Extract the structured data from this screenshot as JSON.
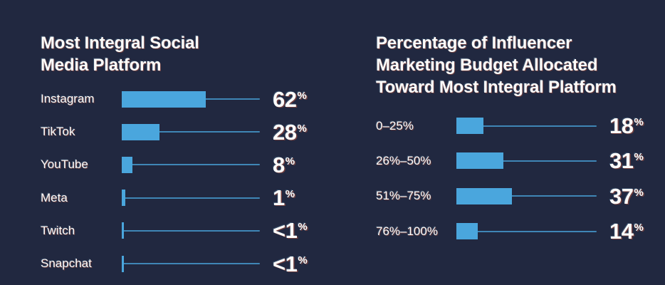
{
  "page": {
    "background": "#212840",
    "text_color": "#FDFCFA",
    "accent": "#4AA6DD"
  },
  "chart_data": [
    {
      "type": "bar",
      "orientation": "horizontal",
      "title": "Most Integral Social Media Platform",
      "title_lines": [
        "Most Integral Social",
        "Media Platform"
      ],
      "categories": [
        "Instagram",
        "TikTok",
        "YouTube",
        "Meta",
        "Twitch",
        "Snapchat"
      ],
      "values": [
        62,
        28,
        8,
        1,
        0.4,
        0.4
      ],
      "value_labels": [
        "62",
        "28",
        "8",
        "1",
        "<1",
        "<1"
      ],
      "unit": "%",
      "xlim": [
        0,
        100
      ],
      "bar_color": "#4AA6DD",
      "grid": "off",
      "legend": "none"
    },
    {
      "type": "bar",
      "orientation": "horizontal",
      "title": "Percentage of Influencer Marketing Budget Allocated Toward Most Integral Platform",
      "title_lines": [
        "Percentage of Influencer",
        "Marketing Budget Allocated",
        "Toward Most Integral Platform"
      ],
      "categories": [
        "0–25%",
        "26%–50%",
        "51%–75%",
        "76%–100%"
      ],
      "values": [
        18,
        31,
        37,
        14
      ],
      "value_labels": [
        "18",
        "31",
        "37",
        "14"
      ],
      "unit": "%",
      "xlim": [
        0,
        100
      ],
      "bar_color": "#4AA6DD",
      "grid": "off",
      "legend": "none"
    }
  ]
}
